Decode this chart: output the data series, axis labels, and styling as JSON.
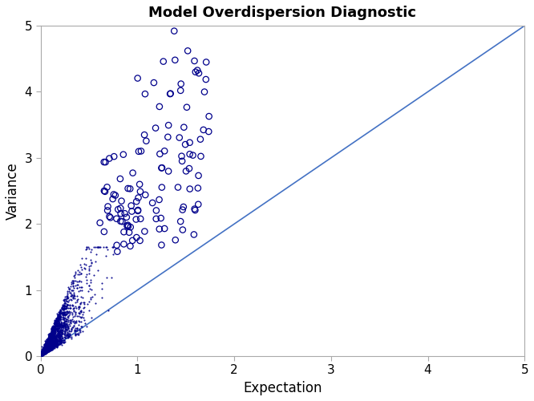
{
  "title": "Model Overdispersion Diagnostic",
  "xlabel": "Expectation",
  "ylabel": "Variance",
  "xlim": [
    0,
    5
  ],
  "ylim": [
    0,
    5
  ],
  "xticks": [
    0,
    1,
    2,
    3,
    4,
    5
  ],
  "yticks": [
    0,
    1,
    2,
    3,
    4,
    5
  ],
  "ref_line_x": [
    0,
    5
  ],
  "ref_line_y": [
    0,
    5
  ],
  "point_color": "#00008B",
  "line_color": "#4472C4",
  "bg_color": "#FFFFFF",
  "spine_color": "#AAAAAA",
  "title_fontsize": 13,
  "axis_label_fontsize": 12,
  "tick_fontsize": 11
}
